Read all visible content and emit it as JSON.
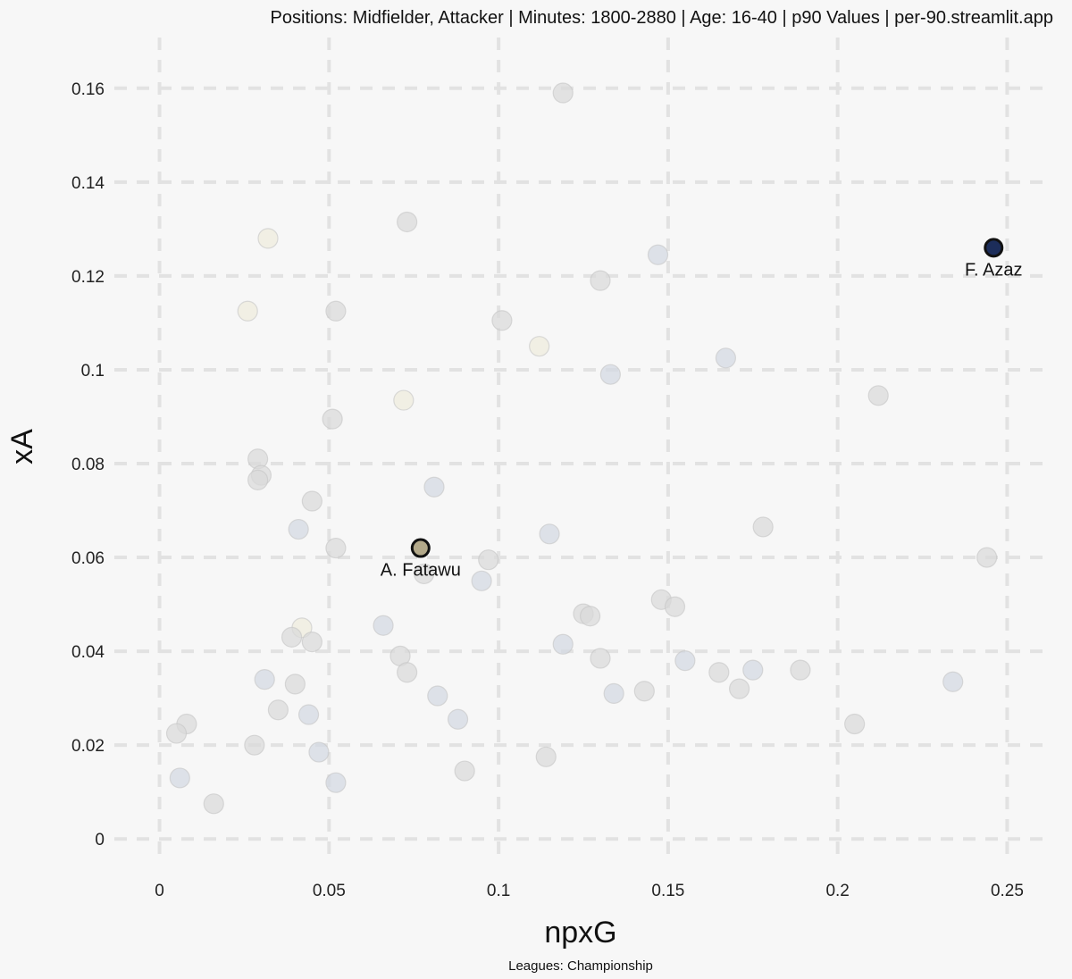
{
  "header": {
    "title": "Positions: Midfielder, Attacker  | Minutes: 1800-2880 | Age: 16-40  | p90 Values | per-90.streamlit.app"
  },
  "footer": {
    "caption": "Leagues: Championship"
  },
  "chart_data": {
    "type": "scatter",
    "title": "Positions: Midfielder, Attacker  | Minutes: 1800-2880 | Age: 16-40  | p90 Values | per-90.streamlit.app",
    "xlabel": "npxG",
    "ylabel": "xA",
    "xlim": [
      -0.012,
      0.262
    ],
    "ylim": [
      -0.007,
      0.167
    ],
    "xticks": [
      0,
      0.05,
      0.1,
      0.15,
      0.2,
      0.25
    ],
    "xtick_labels": [
      "0",
      "0.05",
      "0.1",
      "0.15",
      "0.2",
      "0.25"
    ],
    "yticks": [
      0,
      0.02,
      0.04,
      0.06,
      0.08,
      0.1,
      0.12,
      0.14,
      0.16
    ],
    "ytick_labels": [
      "0",
      "0.02",
      "0.04",
      "0.06",
      "0.08",
      "0.1",
      "0.12",
      "0.14",
      "0.16"
    ],
    "grid": true,
    "colors": {
      "background": "#f7f7f7",
      "grey": "#d9d9d9",
      "blue_grey": "#d3d8e2",
      "cream": "#eeecdc",
      "highlight_gold": "#b3a98a",
      "highlight_navy": "#1c2d5a",
      "highlight_stroke": "#111111"
    },
    "points": [
      {
        "x": 0.119,
        "y": 0.159,
        "tone": "grey"
      },
      {
        "x": 0.073,
        "y": 0.1315,
        "tone": "grey"
      },
      {
        "x": 0.032,
        "y": 0.128,
        "tone": "cream"
      },
      {
        "x": 0.147,
        "y": 0.1245,
        "tone": "blue_grey"
      },
      {
        "x": 0.13,
        "y": 0.119,
        "tone": "grey"
      },
      {
        "x": 0.026,
        "y": 0.1125,
        "tone": "cream"
      },
      {
        "x": 0.052,
        "y": 0.1125,
        "tone": "grey"
      },
      {
        "x": 0.101,
        "y": 0.1105,
        "tone": "grey"
      },
      {
        "x": 0.112,
        "y": 0.105,
        "tone": "cream"
      },
      {
        "x": 0.133,
        "y": 0.099,
        "tone": "blue_grey"
      },
      {
        "x": 0.167,
        "y": 0.1025,
        "tone": "blue_grey"
      },
      {
        "x": 0.212,
        "y": 0.0945,
        "tone": "grey"
      },
      {
        "x": 0.072,
        "y": 0.0935,
        "tone": "cream"
      },
      {
        "x": 0.051,
        "y": 0.0895,
        "tone": "grey"
      },
      {
        "x": 0.029,
        "y": 0.081,
        "tone": "grey"
      },
      {
        "x": 0.03,
        "y": 0.0775,
        "tone": "grey"
      },
      {
        "x": 0.029,
        "y": 0.0765,
        "tone": "grey"
      },
      {
        "x": 0.081,
        "y": 0.075,
        "tone": "blue_grey"
      },
      {
        "x": 0.045,
        "y": 0.072,
        "tone": "grey"
      },
      {
        "x": 0.178,
        "y": 0.0665,
        "tone": "grey"
      },
      {
        "x": 0.041,
        "y": 0.066,
        "tone": "blue_grey"
      },
      {
        "x": 0.115,
        "y": 0.065,
        "tone": "blue_grey"
      },
      {
        "x": 0.052,
        "y": 0.062,
        "tone": "grey"
      },
      {
        "x": 0.097,
        "y": 0.0595,
        "tone": "grey"
      },
      {
        "x": 0.244,
        "y": 0.06,
        "tone": "grey"
      },
      {
        "x": 0.078,
        "y": 0.0565,
        "tone": "grey"
      },
      {
        "x": 0.095,
        "y": 0.055,
        "tone": "blue_grey"
      },
      {
        "x": 0.148,
        "y": 0.051,
        "tone": "grey"
      },
      {
        "x": 0.152,
        "y": 0.0495,
        "tone": "grey"
      },
      {
        "x": 0.125,
        "y": 0.048,
        "tone": "grey"
      },
      {
        "x": 0.127,
        "y": 0.0475,
        "tone": "grey"
      },
      {
        "x": 0.066,
        "y": 0.0455,
        "tone": "blue_grey"
      },
      {
        "x": 0.042,
        "y": 0.045,
        "tone": "cream"
      },
      {
        "x": 0.039,
        "y": 0.043,
        "tone": "grey"
      },
      {
        "x": 0.045,
        "y": 0.042,
        "tone": "grey"
      },
      {
        "x": 0.119,
        "y": 0.0415,
        "tone": "blue_grey"
      },
      {
        "x": 0.071,
        "y": 0.039,
        "tone": "grey"
      },
      {
        "x": 0.13,
        "y": 0.0385,
        "tone": "grey"
      },
      {
        "x": 0.155,
        "y": 0.038,
        "tone": "blue_grey"
      },
      {
        "x": 0.165,
        "y": 0.0355,
        "tone": "grey"
      },
      {
        "x": 0.175,
        "y": 0.036,
        "tone": "blue_grey"
      },
      {
        "x": 0.189,
        "y": 0.036,
        "tone": "grey"
      },
      {
        "x": 0.073,
        "y": 0.0355,
        "tone": "grey"
      },
      {
        "x": 0.031,
        "y": 0.034,
        "tone": "blue_grey"
      },
      {
        "x": 0.04,
        "y": 0.033,
        "tone": "grey"
      },
      {
        "x": 0.171,
        "y": 0.032,
        "tone": "grey"
      },
      {
        "x": 0.143,
        "y": 0.0315,
        "tone": "grey"
      },
      {
        "x": 0.134,
        "y": 0.031,
        "tone": "blue_grey"
      },
      {
        "x": 0.082,
        "y": 0.0305,
        "tone": "blue_grey"
      },
      {
        "x": 0.234,
        "y": 0.0335,
        "tone": "blue_grey"
      },
      {
        "x": 0.035,
        "y": 0.0275,
        "tone": "grey"
      },
      {
        "x": 0.044,
        "y": 0.0265,
        "tone": "blue_grey"
      },
      {
        "x": 0.088,
        "y": 0.0255,
        "tone": "blue_grey"
      },
      {
        "x": 0.205,
        "y": 0.0245,
        "tone": "grey"
      },
      {
        "x": 0.008,
        "y": 0.0245,
        "tone": "grey"
      },
      {
        "x": 0.005,
        "y": 0.0225,
        "tone": "grey"
      },
      {
        "x": 0.028,
        "y": 0.02,
        "tone": "grey"
      },
      {
        "x": 0.047,
        "y": 0.0185,
        "tone": "blue_grey"
      },
      {
        "x": 0.114,
        "y": 0.0175,
        "tone": "grey"
      },
      {
        "x": 0.09,
        "y": 0.0145,
        "tone": "grey"
      },
      {
        "x": 0.006,
        "y": 0.013,
        "tone": "blue_grey"
      },
      {
        "x": 0.052,
        "y": 0.012,
        "tone": "blue_grey"
      },
      {
        "x": 0.016,
        "y": 0.0075,
        "tone": "grey"
      }
    ],
    "highlights": [
      {
        "x": 0.077,
        "y": 0.062,
        "label": "A. Fatawu",
        "tone": "highlight_gold"
      },
      {
        "x": 0.246,
        "y": 0.126,
        "label": "F. Azaz",
        "tone": "highlight_navy"
      }
    ]
  }
}
